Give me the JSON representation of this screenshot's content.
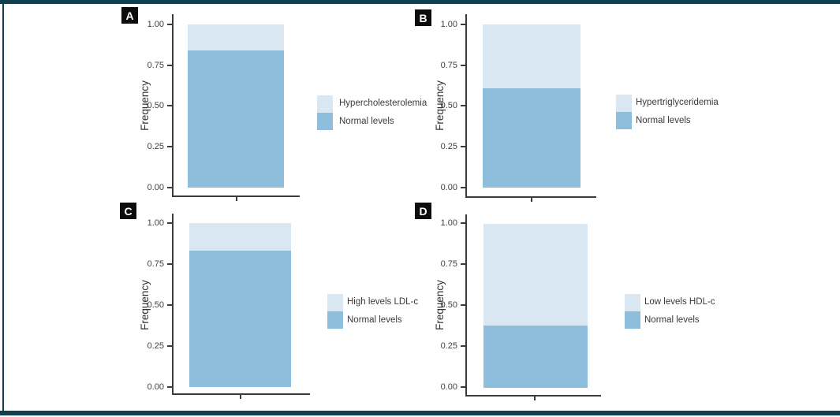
{
  "figure": {
    "frame_color": "#123f50",
    "background": "#ffffff",
    "panel_labels": [
      "A",
      "B",
      "C",
      "D"
    ]
  },
  "chart_data": [
    {
      "type": "bar",
      "panel": "A",
      "stacked": true,
      "categories": [
        ""
      ],
      "ylabel": "Frequency",
      "xlabel": "",
      "ylim": [
        0,
        1
      ],
      "yticks": [
        "1.00",
        "0.75",
        "0.50",
        "0.25",
        "0.00"
      ],
      "grid": false,
      "legend_position": "right",
      "series": [
        {
          "name": "Hypercholesterolemia",
          "values": [
            0.16
          ],
          "color": "#d9e7f3"
        },
        {
          "name": "Normal levels",
          "values": [
            0.84
          ],
          "color": "#8ebedb"
        }
      ]
    },
    {
      "type": "bar",
      "panel": "B",
      "stacked": true,
      "categories": [
        ""
      ],
      "ylabel": "Frequency",
      "xlabel": "",
      "ylim": [
        0,
        1
      ],
      "yticks": [
        "1.00",
        "0.75",
        "0.50",
        "0.25",
        "0.00"
      ],
      "grid": false,
      "legend_position": "right",
      "series": [
        {
          "name": "Hypertriglyceridemia",
          "values": [
            0.39
          ],
          "color": "#d9e7f3"
        },
        {
          "name": "Normal levels",
          "values": [
            0.61
          ],
          "color": "#8ebedb"
        }
      ]
    },
    {
      "type": "bar",
      "panel": "C",
      "stacked": true,
      "categories": [
        ""
      ],
      "ylabel": "Frequency",
      "xlabel": "",
      "ylim": [
        0,
        1
      ],
      "yticks": [
        "1.00",
        "0.75",
        "0.50",
        "0.25",
        "0.00"
      ],
      "grid": false,
      "legend_position": "right",
      "series": [
        {
          "name": "High levels LDL-c",
          "values": [
            0.17
          ],
          "color": "#d9e7f3"
        },
        {
          "name": "Normal levels",
          "values": [
            0.83
          ],
          "color": "#8ebedb"
        }
      ]
    },
    {
      "type": "bar",
      "panel": "D",
      "stacked": true,
      "categories": [
        ""
      ],
      "ylabel": "Frequency",
      "xlabel": "",
      "ylim": [
        0,
        1
      ],
      "yticks": [
        "1.00",
        "0.75",
        "0.50",
        "0.25",
        "0.00"
      ],
      "grid": false,
      "legend_position": "right",
      "series": [
        {
          "name": "Low levels HDL-c",
          "values": [
            0.62
          ],
          "color": "#d9e7f3"
        },
        {
          "name": "Normal levels",
          "values": [
            0.38
          ],
          "color": "#8ebedb"
        }
      ]
    }
  ]
}
